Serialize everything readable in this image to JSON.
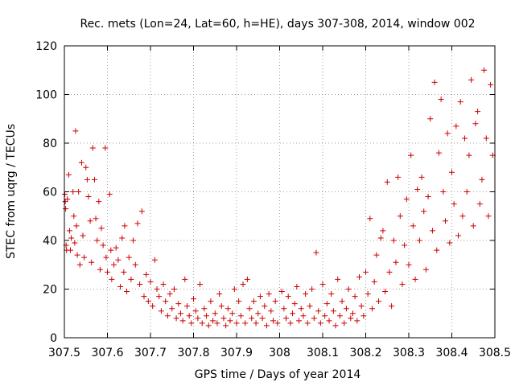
{
  "chart_data": {
    "type": "scatter",
    "title": "Rec. mets (Lon=24, Lat=60, h=HE), days 307-308, 2014, window 002",
    "xlabel": "GPS time / Days of year 2014",
    "ylabel": "STEC from uqrg / TECUs",
    "xlim": [
      307.5,
      308.5
    ],
    "ylim": [
      0,
      120
    ],
    "xticks": [
      "307.5",
      "307.6",
      "307.7",
      "307.8",
      "307.9",
      "308",
      "308.1",
      "308.2",
      "308.3",
      "308.4",
      "308.5"
    ],
    "yticks": [
      "0",
      "20",
      "40",
      "60",
      "80",
      "100",
      "120"
    ],
    "grid": true,
    "marker": "+",
    "color": "#cc0000",
    "series": [
      {
        "name": "STEC",
        "points": [
          [
            307.501,
            59
          ],
          [
            307.502,
            56
          ],
          [
            307.503,
            53
          ],
          [
            307.504,
            38
          ],
          [
            307.505,
            36
          ],
          [
            307.507,
            57
          ],
          [
            307.51,
            67
          ],
          [
            307.512,
            44
          ],
          [
            307.514,
            36
          ],
          [
            307.516,
            41
          ],
          [
            307.52,
            60
          ],
          [
            307.522,
            50
          ],
          [
            307.524,
            39
          ],
          [
            307.526,
            85
          ],
          [
            307.528,
            46
          ],
          [
            307.53,
            34
          ],
          [
            307.533,
            60
          ],
          [
            307.536,
            30
          ],
          [
            307.54,
            72
          ],
          [
            307.543,
            42
          ],
          [
            307.546,
            33
          ],
          [
            307.55,
            70
          ],
          [
            307.553,
            65
          ],
          [
            307.556,
            58
          ],
          [
            307.56,
            48
          ],
          [
            307.563,
            31
          ],
          [
            307.566,
            78
          ],
          [
            307.57,
            65
          ],
          [
            307.573,
            49
          ],
          [
            307.576,
            40
          ],
          [
            307.58,
            56
          ],
          [
            307.583,
            28
          ],
          [
            307.586,
            45
          ],
          [
            307.59,
            38
          ],
          [
            307.595,
            78
          ],
          [
            307.597,
            33
          ],
          [
            307.6,
            27
          ],
          [
            307.605,
            59
          ],
          [
            307.608,
            36
          ],
          [
            307.61,
            24
          ],
          [
            307.615,
            30
          ],
          [
            307.62,
            37
          ],
          [
            307.625,
            32
          ],
          [
            307.63,
            21
          ],
          [
            307.634,
            41
          ],
          [
            307.638,
            27
          ],
          [
            307.64,
            46
          ],
          [
            307.645,
            19
          ],
          [
            307.65,
            33
          ],
          [
            307.655,
            24
          ],
          [
            307.66,
            40
          ],
          [
            307.665,
            30
          ],
          [
            307.67,
            47
          ],
          [
            307.675,
            22
          ],
          [
            307.68,
            52
          ],
          [
            307.685,
            17
          ],
          [
            307.69,
            26
          ],
          [
            307.695,
            15
          ],
          [
            307.7,
            23
          ],
          [
            307.705,
            13
          ],
          [
            307.71,
            32
          ],
          [
            307.715,
            20
          ],
          [
            307.72,
            17
          ],
          [
            307.725,
            11
          ],
          [
            307.73,
            22
          ],
          [
            307.735,
            15
          ],
          [
            307.74,
            9
          ],
          [
            307.745,
            18
          ],
          [
            307.75,
            12
          ],
          [
            307.755,
            20
          ],
          [
            307.76,
            8
          ],
          [
            307.765,
            14
          ],
          [
            307.77,
            10
          ],
          [
            307.775,
            7
          ],
          [
            307.78,
            24
          ],
          [
            307.785,
            13
          ],
          [
            307.79,
            9
          ],
          [
            307.795,
            6
          ],
          [
            307.8,
            16
          ],
          [
            307.805,
            11
          ],
          [
            307.81,
            8
          ],
          [
            307.815,
            22
          ],
          [
            307.82,
            6
          ],
          [
            307.825,
            12
          ],
          [
            307.83,
            9
          ],
          [
            307.835,
            5
          ],
          [
            307.84,
            15
          ],
          [
            307.845,
            7
          ],
          [
            307.85,
            10
          ],
          [
            307.855,
            6
          ],
          [
            307.86,
            18
          ],
          [
            307.865,
            13
          ],
          [
            307.87,
            8
          ],
          [
            307.875,
            5
          ],
          [
            307.88,
            12
          ],
          [
            307.885,
            7
          ],
          [
            307.89,
            10
          ],
          [
            307.895,
            20
          ],
          [
            307.9,
            6
          ],
          [
            307.905,
            15
          ],
          [
            307.91,
            9
          ],
          [
            307.915,
            22
          ],
          [
            307.92,
            6
          ],
          [
            307.925,
            24
          ],
          [
            307.93,
            12
          ],
          [
            307.935,
            8
          ],
          [
            307.94,
            15
          ],
          [
            307.945,
            6
          ],
          [
            307.95,
            10
          ],
          [
            307.955,
            17
          ],
          [
            307.96,
            8
          ],
          [
            307.965,
            13
          ],
          [
            307.97,
            5
          ],
          [
            307.975,
            18
          ],
          [
            307.98,
            11
          ],
          [
            307.985,
            7
          ],
          [
            307.99,
            15
          ],
          [
            307.995,
            6
          ],
          [
            308.005,
            19
          ],
          [
            308.01,
            12
          ],
          [
            308.015,
            8
          ],
          [
            308.02,
            17
          ],
          [
            308.025,
            6
          ],
          [
            308.03,
            10
          ],
          [
            308.035,
            14
          ],
          [
            308.04,
            21
          ],
          [
            308.045,
            7
          ],
          [
            308.05,
            12
          ],
          [
            308.055,
            9
          ],
          [
            308.06,
            18
          ],
          [
            308.065,
            6
          ],
          [
            308.07,
            13
          ],
          [
            308.075,
            20
          ],
          [
            308.08,
            8
          ],
          [
            308.085,
            35
          ],
          [
            308.09,
            11
          ],
          [
            308.095,
            6
          ],
          [
            308.1,
            22
          ],
          [
            308.105,
            9
          ],
          [
            308.11,
            14
          ],
          [
            308.115,
            7
          ],
          [
            308.12,
            18
          ],
          [
            308.125,
            11
          ],
          [
            308.13,
            5
          ],
          [
            308.135,
            24
          ],
          [
            308.14,
            9
          ],
          [
            308.145,
            15
          ],
          [
            308.15,
            6
          ],
          [
            308.155,
            12
          ],
          [
            308.16,
            20
          ],
          [
            308.165,
            8
          ],
          [
            308.17,
            10
          ],
          [
            308.175,
            17
          ],
          [
            308.18,
            7
          ],
          [
            308.185,
            25
          ],
          [
            308.19,
            13
          ],
          [
            308.195,
            9
          ],
          [
            308.2,
            27
          ],
          [
            308.205,
            18
          ],
          [
            308.21,
            49
          ],
          [
            308.215,
            12
          ],
          [
            308.22,
            23
          ],
          [
            308.225,
            34
          ],
          [
            308.23,
            15
          ],
          [
            308.235,
            41
          ],
          [
            308.24,
            44
          ],
          [
            308.245,
            19
          ],
          [
            308.25,
            64
          ],
          [
            308.255,
            27
          ],
          [
            308.26,
            13
          ],
          [
            308.265,
            40
          ],
          [
            308.27,
            31
          ],
          [
            308.275,
            66
          ],
          [
            308.28,
            50
          ],
          [
            308.285,
            22
          ],
          [
            308.29,
            38
          ],
          [
            308.295,
            57
          ],
          [
            308.3,
            30
          ],
          [
            308.305,
            75
          ],
          [
            308.31,
            46
          ],
          [
            308.315,
            24
          ],
          [
            308.32,
            61
          ],
          [
            308.325,
            40
          ],
          [
            308.33,
            66
          ],
          [
            308.335,
            52
          ],
          [
            308.34,
            28
          ],
          [
            308.345,
            58
          ],
          [
            308.35,
            90
          ],
          [
            308.355,
            44
          ],
          [
            308.36,
            105
          ],
          [
            308.365,
            36
          ],
          [
            308.37,
            76
          ],
          [
            308.375,
            98
          ],
          [
            308.38,
            60
          ],
          [
            308.385,
            48
          ],
          [
            308.39,
            84
          ],
          [
            308.395,
            39
          ],
          [
            308.4,
            68
          ],
          [
            308.405,
            55
          ],
          [
            308.41,
            87
          ],
          [
            308.415,
            42
          ],
          [
            308.42,
            97
          ],
          [
            308.425,
            50
          ],
          [
            308.43,
            82
          ],
          [
            308.435,
            60
          ],
          [
            308.44,
            75
          ],
          [
            308.445,
            106
          ],
          [
            308.45,
            46
          ],
          [
            308.455,
            88
          ],
          [
            308.46,
            93
          ],
          [
            308.465,
            55
          ],
          [
            308.47,
            65
          ],
          [
            308.475,
            110
          ],
          [
            308.48,
            82
          ],
          [
            308.485,
            50
          ],
          [
            308.49,
            104
          ],
          [
            308.495,
            75
          ]
        ]
      }
    ]
  }
}
